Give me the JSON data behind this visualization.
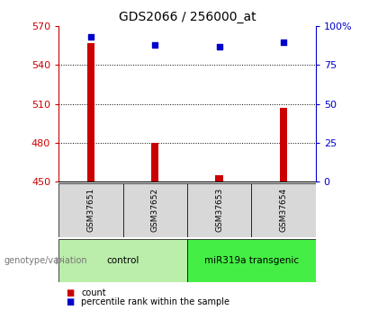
{
  "title": "GDS2066 / 256000_at",
  "samples": [
    "GSM37651",
    "GSM37652",
    "GSM37653",
    "GSM37654"
  ],
  "counts": [
    557,
    480,
    455,
    507
  ],
  "percentile_ranks": [
    93,
    88,
    87,
    90
  ],
  "ylim_left": [
    450,
    570
  ],
  "ylim_right": [
    0,
    100
  ],
  "yticks_left": [
    450,
    480,
    510,
    540,
    570
  ],
  "yticks_right": [
    0,
    25,
    50,
    75,
    100
  ],
  "bar_color": "#cc0000",
  "dot_color": "#0000cc",
  "title_fontsize": 10,
  "axis_color_left": "#cc0000",
  "axis_color_right": "#0000cc",
  "group_defs": [
    {
      "label": "control",
      "xstart": 0,
      "xend": 2,
      "color": "#bbeeaa"
    },
    {
      "label": "miR319a transgenic",
      "xstart": 2,
      "xend": 4,
      "color": "#44ee44"
    }
  ],
  "legend_items": [
    "count",
    "percentile rank within the sample"
  ],
  "bar_width": 0.12
}
